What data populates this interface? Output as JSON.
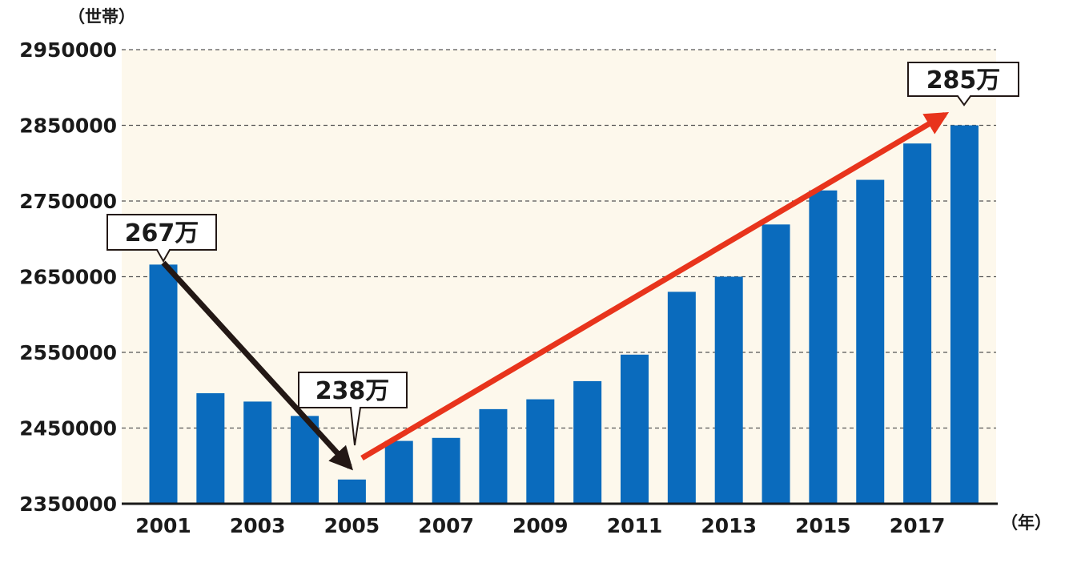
{
  "chart_data": {
    "type": "bar",
    "ylabel": "（世帯）",
    "xlabel": "（年）",
    "ylim": [
      2350000,
      2950000
    ],
    "yticks": [
      2350000,
      2450000,
      2550000,
      2650000,
      2750000,
      2850000,
      2950000
    ],
    "ytick_labels": [
      "2350000",
      "2450000",
      "2550000",
      "2650000",
      "2750000",
      "2850000",
      "2950000"
    ],
    "categories": [
      "2001",
      "2002",
      "2003",
      "2004",
      "2005",
      "2006",
      "2007",
      "2008",
      "2009",
      "2010",
      "2011",
      "2012",
      "2013",
      "2014",
      "2015",
      "2016",
      "2017",
      "2018"
    ],
    "x_tick_labels": [
      "2001",
      "2003",
      "2005",
      "2007",
      "2009",
      "2011",
      "2013",
      "2015",
      "2017"
    ],
    "values": [
      2666000,
      2496000,
      2485000,
      2466000,
      2382000,
      2433000,
      2437000,
      2475000,
      2488000,
      2512000,
      2547000,
      2630000,
      2650000,
      2719000,
      2764000,
      2778000,
      2826000,
      2850000
    ],
    "grid": true,
    "annotations": [
      {
        "text": "267万",
        "category": "2001"
      },
      {
        "text": "238万",
        "category": "2005"
      },
      {
        "text": "285万",
        "category": "2018"
      }
    ],
    "trend_arrows": [
      {
        "from": "2001",
        "to": "2005",
        "direction": "down",
        "color": "#231815"
      },
      {
        "from": "2005",
        "to": "2018",
        "direction": "up",
        "color": "#e8341c"
      }
    ]
  },
  "colors": {
    "bar": "#0a6bbd",
    "plot_band": "#fdf8ec",
    "grid": "#555555",
    "axis": "#1a1a1a",
    "down_arrow": "#231815",
    "up_arrow": "#e8341c"
  }
}
